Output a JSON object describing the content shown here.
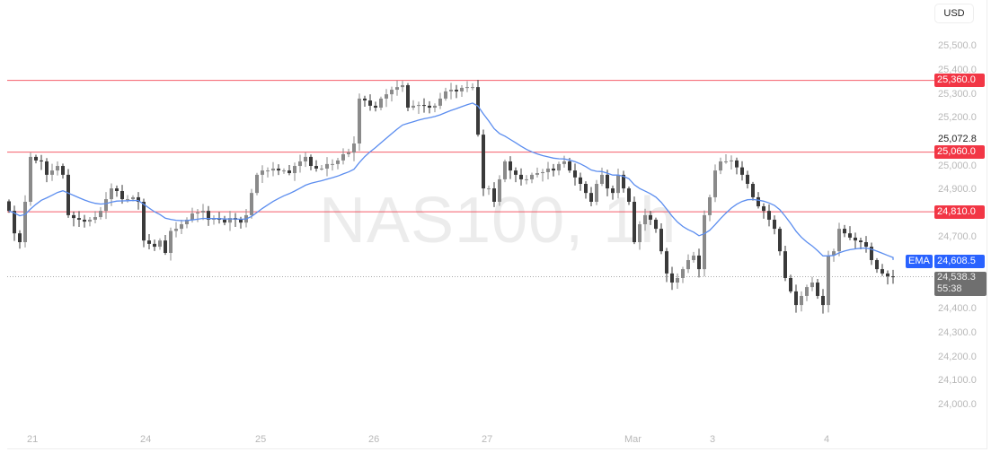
{
  "chart_data": {
    "type": "candlestick",
    "title": "NAS100, 1h",
    "currency": "USD",
    "x_tick_labels": [
      "21",
      "24",
      "25",
      "26",
      "27",
      "Mar",
      "3",
      "4"
    ],
    "y_tick_labels": [
      "25,500.0",
      "25,400.0",
      "25,300.0",
      "25,200.0",
      "25,000.0",
      "24,900.0",
      "24,700.0",
      "24,400.0",
      "24,300.0",
      "24,200.0",
      "24,100.0",
      "24,000.0"
    ],
    "y_ticks": [
      25500,
      25400,
      25300,
      25200,
      25000,
      24900,
      24700,
      24400,
      24300,
      24200,
      24100,
      24000
    ],
    "ylim": [
      23950,
      25700
    ],
    "grid": false,
    "closes": [
      24814,
      24720,
      24683,
      24852,
      25040,
      25025,
      25021,
      24965,
      24983,
      25002,
      24965,
      24796,
      24784,
      24777,
      24769,
      24777,
      24788,
      24814,
      24863,
      24908,
      24897,
      24863,
      24863,
      24871,
      24852,
      24690,
      24676,
      24664,
      24690,
      24638,
      24730,
      24739,
      24758,
      24777,
      24803,
      24807,
      24814,
      24777,
      24784,
      24777,
      24765,
      24784,
      24777,
      24765,
      24796,
      24889,
      24965,
      24983,
      24983,
      24991,
      24983,
      24983,
      24972,
      25002,
      25021,
      25040,
      25002,
      24991,
      24991,
      25010,
      25010,
      25025,
      25051,
      25058,
      25096,
      25284,
      25276,
      25254,
      25246,
      25284,
      25302,
      25321,
      25332,
      25340,
      25246,
      25254,
      25257,
      25254,
      25246,
      25254,
      25284,
      25314,
      25321,
      25314,
      25329,
      25332,
      25332,
      25133,
      24908,
      24908,
      24852,
      24946,
      25021,
      24983,
      24965,
      24946,
      24946,
      24965,
      24972,
      24976,
      24991,
      24983,
      25010,
      25021,
      24983,
      24954,
      24927,
      24889,
      24852,
      24927,
      24965,
      24908,
      24889,
      24965,
      24908,
      24852,
      24683,
      24758,
      24796,
      24777,
      24739,
      24645,
      24552,
      24514,
      24533,
      24570,
      24608,
      24627,
      24570,
      24796,
      24871,
      24983,
      25021,
      25021,
      25025,
      24996,
      24965,
      24927,
      24871,
      24833,
      24814,
      24777,
      24739,
      24645,
      24533,
      24477,
      24420,
      24458,
      24495,
      24514,
      24458,
      24420,
      24627,
      24645,
      24739,
      24720,
      24702,
      24690,
      24683,
      24664,
      24608,
      24570,
      24552,
      24540,
      24538
    ],
    "horizontal_levels": [
      {
        "value": 25360.0,
        "label": "25,360.0"
      },
      {
        "value": 25060.0,
        "label": "25,060.0"
      },
      {
        "value": 24810.0,
        "label": "24,810.0"
      }
    ],
    "indicator": {
      "name": "EMA",
      "value_label": "24,608.5",
      "color": "#5b8def"
    },
    "session_high_label": "25,072.8",
    "last_price": {
      "value": 24538.3,
      "label": "24,538.3",
      "countdown": "55:38"
    },
    "colors": {
      "up": "#8a8a8a",
      "down": "#3a3a3a",
      "level": "#f23645",
      "ema": "#5b8def"
    }
  }
}
